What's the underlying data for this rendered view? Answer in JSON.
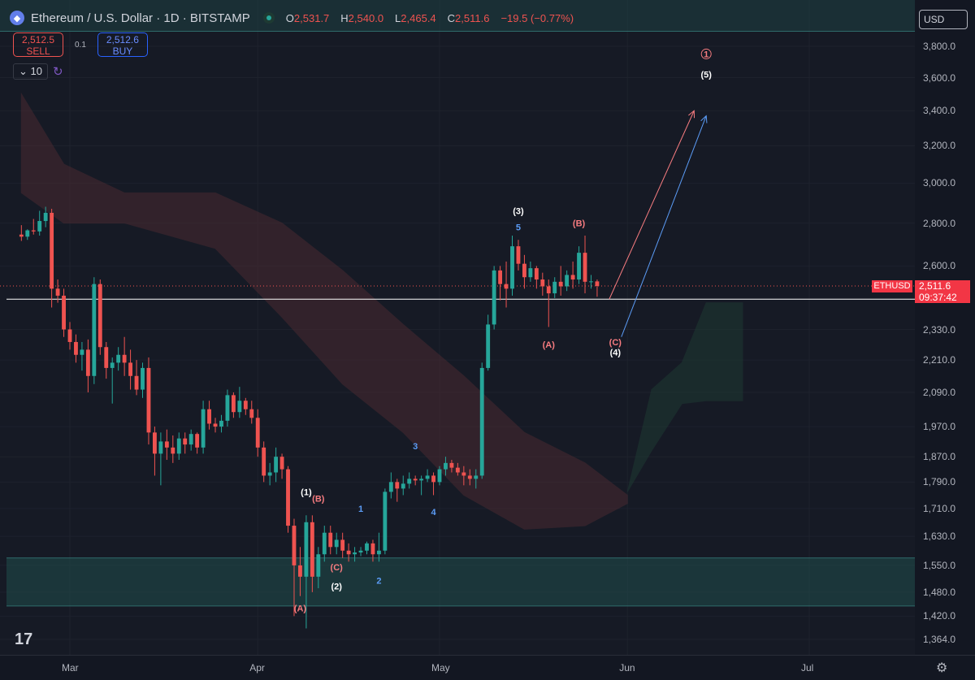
{
  "header": {
    "title": "Ethereum / U.S. Dollar · 1D · BITSTAMP",
    "open_label": "O",
    "open": "2,531.7",
    "high_label": "H",
    "high": "2,540.0",
    "low_label": "L",
    "low": "2,465.4",
    "close_label": "C",
    "close": "2,511.6",
    "change": "−19.5 (−0.77%)",
    "logo_icon": "ethereum-logo-icon",
    "status_icon": "market-open-icon"
  },
  "trade": {
    "sell_price": "2,512.5",
    "sell_label": "SELL",
    "spread": "0.1",
    "buy_price": "2,512.6",
    "buy_label": "BUY"
  },
  "indicator": {
    "value": "10",
    "icon": "cycle-icon"
  },
  "currency": "USD",
  "price_tag": {
    "symbol": "ETHUSD",
    "price": "2,511.6",
    "countdown": "09:37:42"
  },
  "colors": {
    "up": "#26a69a",
    "down": "#ef5350",
    "background": "#161a25",
    "cloud_bear": "#4a2a31",
    "cloud_bull": "#1e3a33",
    "zone": "#1f4a4a",
    "white_wave": "#ffffff",
    "red_wave": "#f77c80",
    "blue_wave": "#5b9cf6"
  },
  "chart_data": {
    "type": "candlestick",
    "symbol": "ETHUSD",
    "timeframe": "1D",
    "exchange": "BITSTAMP",
    "y_scale": "log",
    "y_ticks": [
      3800,
      3600,
      3400,
      3200,
      3000,
      2800,
      2600,
      2330,
      2210,
      2090,
      1970,
      1870,
      1790,
      1710,
      1630,
      1550,
      1480,
      1420,
      1364
    ],
    "y_tick_labels": [
      "3,800.0",
      "3,600.0",
      "3,400.0",
      "3,200.0",
      "3,000.0",
      "2,800.0",
      "2,600.0",
      "2,330.0",
      "2,210.0",
      "2,090.0",
      "1,970.0",
      "1,870.0",
      "1,790.0",
      "1,710.0",
      "1,630.0",
      "1,550.0",
      "1,480.0",
      "1,420.0",
      "1,364.0"
    ],
    "x_ticks": [
      "Mar",
      "Apr",
      "May",
      "Jun",
      "Jul"
    ],
    "x_tick_dates": [
      "2025-03-01",
      "2025-04-01",
      "2025-05-01",
      "2025-06-01",
      "2025-07-01"
    ],
    "x_range": [
      "2025-02-21",
      "2025-07-22"
    ],
    "candles": [
      {
        "date": "2025-02-21",
        "o": 2745,
        "h": 2790,
        "l": 2715,
        "c": 2735
      },
      {
        "date": "2025-02-22",
        "o": 2735,
        "h": 2770,
        "l": 2720,
        "c": 2765
      },
      {
        "date": "2025-02-23",
        "o": 2765,
        "h": 2820,
        "l": 2745,
        "c": 2760
      },
      {
        "date": "2025-02-24",
        "o": 2760,
        "h": 2860,
        "l": 2740,
        "c": 2810
      },
      {
        "date": "2025-02-25",
        "o": 2810,
        "h": 2880,
        "l": 2780,
        "c": 2850
      },
      {
        "date": "2025-02-26",
        "o": 2850,
        "h": 2870,
        "l": 2420,
        "c": 2500
      },
      {
        "date": "2025-02-27",
        "o": 2500,
        "h": 2540,
        "l": 2440,
        "c": 2470
      },
      {
        "date": "2025-02-28",
        "o": 2470,
        "h": 2500,
        "l": 2300,
        "c": 2330
      },
      {
        "date": "2025-03-01",
        "o": 2330,
        "h": 2360,
        "l": 2250,
        "c": 2280
      },
      {
        "date": "2025-03-02",
        "o": 2280,
        "h": 2310,
        "l": 2200,
        "c": 2230
      },
      {
        "date": "2025-03-03",
        "o": 2230,
        "h": 2280,
        "l": 2170,
        "c": 2250
      },
      {
        "date": "2025-03-04",
        "o": 2250,
        "h": 2290,
        "l": 2090,
        "c": 2150
      },
      {
        "date": "2025-03-05",
        "o": 2150,
        "h": 2550,
        "l": 2120,
        "c": 2520
      },
      {
        "date": "2025-03-06",
        "o": 2520,
        "h": 2540,
        "l": 2230,
        "c": 2260
      },
      {
        "date": "2025-03-07",
        "o": 2260,
        "h": 2280,
        "l": 2140,
        "c": 2180
      },
      {
        "date": "2025-03-08",
        "o": 2180,
        "h": 2220,
        "l": 2050,
        "c": 2200
      },
      {
        "date": "2025-03-09",
        "o": 2200,
        "h": 2260,
        "l": 2170,
        "c": 2230
      },
      {
        "date": "2025-03-10",
        "o": 2230,
        "h": 2300,
        "l": 2150,
        "c": 2200
      },
      {
        "date": "2025-03-11",
        "o": 2200,
        "h": 2250,
        "l": 2100,
        "c": 2150
      },
      {
        "date": "2025-03-12",
        "o": 2150,
        "h": 2210,
        "l": 2080,
        "c": 2100
      },
      {
        "date": "2025-03-13",
        "o": 2100,
        "h": 2200,
        "l": 2070,
        "c": 2180
      },
      {
        "date": "2025-03-14",
        "o": 2180,
        "h": 2220,
        "l": 1910,
        "c": 1950
      },
      {
        "date": "2025-03-15",
        "o": 1950,
        "h": 1970,
        "l": 1810,
        "c": 1880
      },
      {
        "date": "2025-03-16",
        "o": 1880,
        "h": 1950,
        "l": 1780,
        "c": 1920
      },
      {
        "date": "2025-03-17",
        "o": 1920,
        "h": 1960,
        "l": 1860,
        "c": 1900
      },
      {
        "date": "2025-03-18",
        "o": 1900,
        "h": 1940,
        "l": 1850,
        "c": 1880
      },
      {
        "date": "2025-03-19",
        "o": 1880,
        "h": 1950,
        "l": 1860,
        "c": 1930
      },
      {
        "date": "2025-03-20",
        "o": 1930,
        "h": 1950,
        "l": 1880,
        "c": 1910
      },
      {
        "date": "2025-03-21",
        "o": 1910,
        "h": 1960,
        "l": 1890,
        "c": 1945
      },
      {
        "date": "2025-03-22",
        "o": 1945,
        "h": 1950,
        "l": 1880,
        "c": 1900
      },
      {
        "date": "2025-03-23",
        "o": 1900,
        "h": 2060,
        "l": 1880,
        "c": 2030
      },
      {
        "date": "2025-03-24",
        "o": 2030,
        "h": 2060,
        "l": 1960,
        "c": 1980
      },
      {
        "date": "2025-03-25",
        "o": 1980,
        "h": 2000,
        "l": 1950,
        "c": 1970
      },
      {
        "date": "2025-03-26",
        "o": 1970,
        "h": 2010,
        "l": 1950,
        "c": 1990
      },
      {
        "date": "2025-03-27",
        "o": 1990,
        "h": 2100,
        "l": 1970,
        "c": 2080
      },
      {
        "date": "2025-03-28",
        "o": 2080,
        "h": 2090,
        "l": 2000,
        "c": 2020
      },
      {
        "date": "2025-03-29",
        "o": 2020,
        "h": 2110,
        "l": 2000,
        "c": 2060
      },
      {
        "date": "2025-03-30",
        "o": 2060,
        "h": 2070,
        "l": 2010,
        "c": 2030
      },
      {
        "date": "2025-03-31",
        "o": 2030,
        "h": 2060,
        "l": 1980,
        "c": 2000
      },
      {
        "date": "2025-04-01",
        "o": 2000,
        "h": 2030,
        "l": 1870,
        "c": 1900
      },
      {
        "date": "2025-04-02",
        "o": 1900,
        "h": 1920,
        "l": 1790,
        "c": 1810
      },
      {
        "date": "2025-04-03",
        "o": 1810,
        "h": 1850,
        "l": 1780,
        "c": 1820
      },
      {
        "date": "2025-04-04",
        "o": 1820,
        "h": 1900,
        "l": 1790,
        "c": 1870
      },
      {
        "date": "2025-04-05",
        "o": 1870,
        "h": 1880,
        "l": 1800,
        "c": 1830
      },
      {
        "date": "2025-04-06",
        "o": 1830,
        "h": 1840,
        "l": 1640,
        "c": 1660
      },
      {
        "date": "2025-04-07",
        "o": 1660,
        "h": 1680,
        "l": 1420,
        "c": 1550
      },
      {
        "date": "2025-04-08",
        "o": 1550,
        "h": 1600,
        "l": 1470,
        "c": 1520
      },
      {
        "date": "2025-04-09",
        "o": 1520,
        "h": 1690,
        "l": 1390,
        "c": 1670
      },
      {
        "date": "2025-04-10",
        "o": 1670,
        "h": 1690,
        "l": 1480,
        "c": 1520
      },
      {
        "date": "2025-04-11",
        "o": 1520,
        "h": 1600,
        "l": 1490,
        "c": 1580
      },
      {
        "date": "2025-04-12",
        "o": 1580,
        "h": 1660,
        "l": 1560,
        "c": 1640
      },
      {
        "date": "2025-04-13",
        "o": 1640,
        "h": 1660,
        "l": 1580,
        "c": 1600
      },
      {
        "date": "2025-04-14",
        "o": 1600,
        "h": 1640,
        "l": 1580,
        "c": 1620
      },
      {
        "date": "2025-04-15",
        "o": 1620,
        "h": 1640,
        "l": 1570,
        "c": 1590
      },
      {
        "date": "2025-04-16",
        "o": 1590,
        "h": 1610,
        "l": 1560,
        "c": 1580
      },
      {
        "date": "2025-04-17",
        "o": 1580,
        "h": 1600,
        "l": 1560,
        "c": 1585
      },
      {
        "date": "2025-04-18",
        "o": 1585,
        "h": 1600,
        "l": 1575,
        "c": 1590
      },
      {
        "date": "2025-04-19",
        "o": 1590,
        "h": 1615,
        "l": 1580,
        "c": 1610
      },
      {
        "date": "2025-04-20",
        "o": 1610,
        "h": 1620,
        "l": 1560,
        "c": 1580
      },
      {
        "date": "2025-04-21",
        "o": 1580,
        "h": 1640,
        "l": 1560,
        "c": 1590
      },
      {
        "date": "2025-04-22",
        "o": 1590,
        "h": 1770,
        "l": 1580,
        "c": 1760
      },
      {
        "date": "2025-04-23",
        "o": 1760,
        "h": 1820,
        "l": 1740,
        "c": 1790
      },
      {
        "date": "2025-04-24",
        "o": 1790,
        "h": 1800,
        "l": 1730,
        "c": 1770
      },
      {
        "date": "2025-04-25",
        "o": 1770,
        "h": 1810,
        "l": 1750,
        "c": 1785
      },
      {
        "date": "2025-04-26",
        "o": 1785,
        "h": 1820,
        "l": 1770,
        "c": 1800
      },
      {
        "date": "2025-04-27",
        "o": 1800,
        "h": 1810,
        "l": 1780,
        "c": 1795
      },
      {
        "date": "2025-04-28",
        "o": 1795,
        "h": 1810,
        "l": 1750,
        "c": 1800
      },
      {
        "date": "2025-04-29",
        "o": 1800,
        "h": 1830,
        "l": 1790,
        "c": 1810
      },
      {
        "date": "2025-04-30",
        "o": 1810,
        "h": 1820,
        "l": 1750,
        "c": 1790
      },
      {
        "date": "2025-05-01",
        "o": 1790,
        "h": 1840,
        "l": 1780,
        "c": 1830
      },
      {
        "date": "2025-05-02",
        "o": 1830,
        "h": 1870,
        "l": 1810,
        "c": 1850
      },
      {
        "date": "2025-05-03",
        "o": 1850,
        "h": 1860,
        "l": 1820,
        "c": 1835
      },
      {
        "date": "2025-05-04",
        "o": 1835,
        "h": 1850,
        "l": 1810,
        "c": 1820
      },
      {
        "date": "2025-05-05",
        "o": 1820,
        "h": 1840,
        "l": 1780,
        "c": 1810
      },
      {
        "date": "2025-05-06",
        "o": 1810,
        "h": 1830,
        "l": 1780,
        "c": 1800
      },
      {
        "date": "2025-05-07",
        "o": 1800,
        "h": 1830,
        "l": 1770,
        "c": 1810
      },
      {
        "date": "2025-05-08",
        "o": 1810,
        "h": 2200,
        "l": 1800,
        "c": 2180
      },
      {
        "date": "2025-05-09",
        "o": 2180,
        "h": 2390,
        "l": 2170,
        "c": 2350
      },
      {
        "date": "2025-05-10",
        "o": 2350,
        "h": 2600,
        "l": 2330,
        "c": 2580
      },
      {
        "date": "2025-05-11",
        "o": 2580,
        "h": 2600,
        "l": 2450,
        "c": 2520
      },
      {
        "date": "2025-05-12",
        "o": 2520,
        "h": 2620,
        "l": 2420,
        "c": 2500
      },
      {
        "date": "2025-05-13",
        "o": 2500,
        "h": 2740,
        "l": 2470,
        "c": 2690
      },
      {
        "date": "2025-05-14",
        "o": 2690,
        "h": 2720,
        "l": 2580,
        "c": 2610
      },
      {
        "date": "2025-05-15",
        "o": 2610,
        "h": 2650,
        "l": 2500,
        "c": 2550
      },
      {
        "date": "2025-05-16",
        "o": 2550,
        "h": 2620,
        "l": 2530,
        "c": 2590
      },
      {
        "date": "2025-05-17",
        "o": 2590,
        "h": 2600,
        "l": 2500,
        "c": 2540
      },
      {
        "date": "2025-05-18",
        "o": 2540,
        "h": 2570,
        "l": 2470,
        "c": 2510
      },
      {
        "date": "2025-05-19",
        "o": 2510,
        "h": 2540,
        "l": 2340,
        "c": 2480
      },
      {
        "date": "2025-05-20",
        "o": 2480,
        "h": 2550,
        "l": 2460,
        "c": 2530
      },
      {
        "date": "2025-05-21",
        "o": 2530,
        "h": 2600,
        "l": 2470,
        "c": 2510
      },
      {
        "date": "2025-05-22",
        "o": 2510,
        "h": 2580,
        "l": 2490,
        "c": 2560
      },
      {
        "date": "2025-05-23",
        "o": 2560,
        "h": 2620,
        "l": 2500,
        "c": 2540
      },
      {
        "date": "2025-05-24",
        "o": 2540,
        "h": 2690,
        "l": 2520,
        "c": 2660
      },
      {
        "date": "2025-05-25",
        "o": 2660,
        "h": 2740,
        "l": 2480,
        "c": 2530
      },
      {
        "date": "2025-05-26",
        "o": 2530,
        "h": 2560,
        "l": 2500,
        "c": 2531.7
      },
      {
        "date": "2025-05-27",
        "o": 2531.7,
        "h": 2540,
        "l": 2465.4,
        "c": 2511.6
      }
    ],
    "ichimoku_cloud": {
      "description": "Shaded cloud band: bearish (red) through mid-May, bullish (green) projected into June",
      "bear_segments": [
        {
          "x": "2025-02-21",
          "upper": 3500,
          "lower": 2950
        },
        {
          "x": "2025-02-28",
          "upper": 3100,
          "lower": 2800
        },
        {
          "x": "2025-03-10",
          "upper": 2950,
          "lower": 2800
        },
        {
          "x": "2025-03-25",
          "upper": 2950,
          "lower": 2680
        },
        {
          "x": "2025-04-05",
          "upper": 2800,
          "lower": 2380
        },
        {
          "x": "2025-04-15",
          "upper": 2580,
          "lower": 2120
        },
        {
          "x": "2025-04-25",
          "upper": 2350,
          "lower": 1950
        },
        {
          "x": "2025-05-05",
          "upper": 2150,
          "lower": 1750
        },
        {
          "x": "2025-05-15",
          "upper": 1950,
          "lower": 1650
        },
        {
          "x": "2025-05-25",
          "upper": 1850,
          "lower": 1660
        },
        {
          "x": "2025-06-01",
          "upper": 1750,
          "lower": 1725
        }
      ],
      "bull_segments": [
        {
          "x": "2025-06-01",
          "upper": 1760,
          "lower": 1760
        },
        {
          "x": "2025-06-05",
          "upper": 2100,
          "lower": 1890
        },
        {
          "x": "2025-06-10",
          "upper": 2200,
          "lower": 2050
        },
        {
          "x": "2025-06-14",
          "upper": 2440,
          "lower": 2060
        },
        {
          "x": "2025-06-20",
          "upper": 2440,
          "lower": 2060
        }
      ]
    },
    "support_zone": {
      "low": 1445,
      "high": 1570
    },
    "resistance_zone_top": 3900,
    "horizontal_line": 2455,
    "last_price_line": 2511.6,
    "projection_arrows": [
      {
        "color": "red",
        "from": {
          "x": "2025-05-29",
          "y": 2455
        },
        "to": {
          "x": "2025-06-12",
          "y": 3400
        }
      },
      {
        "color": "blue",
        "from": {
          "x": "2025-05-31",
          "y": 2300
        },
        "to": {
          "x": "2025-06-14",
          "y": 3370
        }
      }
    ],
    "wave_labels": [
      {
        "text": "(1)",
        "color": "white",
        "x": "2025-04-09",
        "y": 1760
      },
      {
        "text": "(2)",
        "color": "white",
        "x": "2025-04-14",
        "y": 1495
      },
      {
        "text": "(3)",
        "color": "white",
        "x": "2025-05-14",
        "y": 2860
      },
      {
        "text": "(4)",
        "color": "white",
        "x": "2025-05-30",
        "y": 2240
      },
      {
        "text": "(5)",
        "color": "white",
        "x": "2025-06-14",
        "y": 3620
      },
      {
        "text": "1",
        "color": "red-circled",
        "x": "2025-06-14",
        "y": 3750
      },
      {
        "text": "(A)",
        "color": "red",
        "x": "2025-04-08",
        "y": 1440
      },
      {
        "text": "(B)",
        "color": "red",
        "x": "2025-04-11",
        "y": 1740
      },
      {
        "text": "(C)",
        "color": "red",
        "x": "2025-04-14",
        "y": 1545
      },
      {
        "text": "(A)",
        "color": "red",
        "x": "2025-05-19",
        "y": 2270
      },
      {
        "text": "(B)",
        "color": "red",
        "x": "2025-05-24",
        "y": 2800
      },
      {
        "text": "(C)",
        "color": "red",
        "x": "2025-05-30",
        "y": 2280
      },
      {
        "text": "1",
        "color": "blue",
        "x": "2025-04-18",
        "y": 1710
      },
      {
        "text": "2",
        "color": "blue",
        "x": "2025-04-21",
        "y": 1510
      },
      {
        "text": "3",
        "color": "blue",
        "x": "2025-04-27",
        "y": 1905
      },
      {
        "text": "4",
        "color": "blue",
        "x": "2025-04-30",
        "y": 1700
      },
      {
        "text": "5",
        "color": "blue",
        "x": "2025-05-14",
        "y": 2780
      }
    ]
  }
}
